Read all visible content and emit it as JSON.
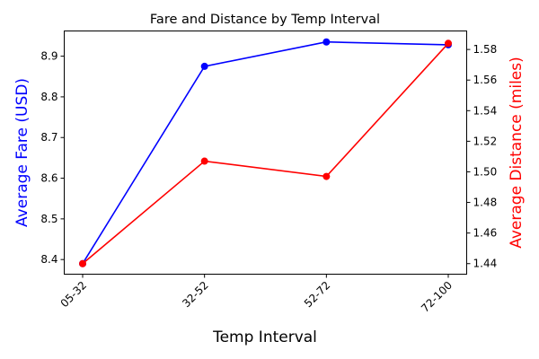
{
  "chart_data": {
    "type": "line",
    "title": "Fare and Distance by Temp Interval",
    "xlabel": "Temp Interval",
    "categories": [
      "05-32",
      "32-52",
      "52-72",
      "72-100"
    ],
    "series": [
      {
        "name": "Average Fare (USD)",
        "axis": "left",
        "color": "#0000ff",
        "values": [
          8.39,
          8.875,
          8.935,
          8.928
        ]
      },
      {
        "name": "Average Distance (miles)",
        "axis": "right",
        "color": "#ff0000",
        "values": [
          1.44,
          1.507,
          1.497,
          1.584
        ]
      }
    ],
    "ylabel_left": "Average Fare (USD)",
    "ylabel_right": "Average Distance (miles)",
    "ylim_left": [
      8.364,
      8.962
    ],
    "ylim_right": [
      1.4331,
      1.5921
    ],
    "yticks_left": [
      "8.4",
      "8.5",
      "8.6",
      "8.7",
      "8.8",
      "8.9"
    ],
    "yticks_right": [
      "1.44",
      "1.46",
      "1.48",
      "1.50",
      "1.52",
      "1.54",
      "1.56",
      "1.58"
    ],
    "xtick_rotation": 45,
    "grid": false,
    "legend": "none"
  }
}
